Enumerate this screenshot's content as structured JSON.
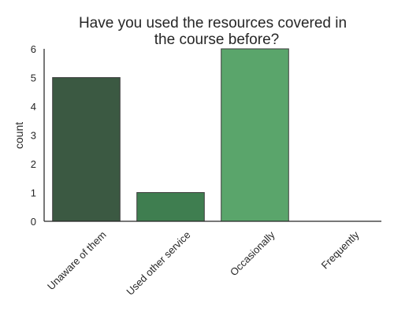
{
  "chart_data": {
    "type": "bar",
    "title_lines": [
      "Have you used the resources covered in",
      "the course before?"
    ],
    "xlabel": "",
    "ylabel": "count",
    "categories": [
      "Unaware of them",
      "Used other service",
      "Occasionally",
      "Frequently"
    ],
    "values": [
      5,
      1,
      6,
      0
    ],
    "colors": [
      "#3b5942",
      "#3f7e50",
      "#5aa56b",
      "#6fc07f"
    ],
    "bar_edge_color": "#3d3d3d",
    "ylim": [
      0,
      6
    ],
    "yticks": [
      0,
      1,
      2,
      3,
      4,
      5,
      6
    ],
    "grid": false,
    "legend": "none"
  }
}
